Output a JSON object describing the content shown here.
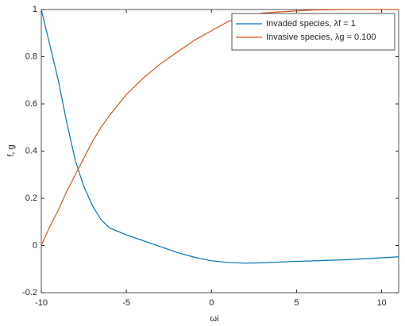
{
  "chart_data": {
    "type": "line",
    "xlabel": "ωi",
    "ylabel": "f, g",
    "x": [
      -10,
      -9.5,
      -9,
      -8.5,
      -8,
      -7.5,
      -7,
      -6.5,
      -6,
      -5,
      -4,
      -3,
      -2,
      -1,
      0,
      1,
      2,
      3,
      4,
      6,
      8,
      10,
      11
    ],
    "series": [
      {
        "name": "Invaded species, λf = 1",
        "color": "#0072bd",
        "values": [
          1,
          0.85,
          0.7,
          0.52,
          0.36,
          0.25,
          0.17,
          0.11,
          0.075,
          0.045,
          0.02,
          -0.005,
          -0.03,
          -0.05,
          -0.065,
          -0.072,
          -0.075,
          -0.073,
          -0.07,
          -0.065,
          -0.06,
          -0.052,
          -0.048
        ]
      },
      {
        "name": "Invasive species, λg = 0.100",
        "color": "#d95319",
        "values": [
          0,
          0.08,
          0.15,
          0.23,
          0.3,
          0.37,
          0.44,
          0.5,
          0.55,
          0.64,
          0.71,
          0.77,
          0.82,
          0.87,
          0.91,
          0.95,
          0.97,
          0.985,
          0.99,
          0.998,
          1,
          1,
          1
        ]
      }
    ],
    "xlim": [
      -10,
      11
    ],
    "xticks": [
      -10,
      -5,
      0,
      5,
      10
    ],
    "ylim": [
      -0.2,
      1
    ],
    "yticks": [
      -0.2,
      0,
      0.2,
      0.4,
      0.6,
      0.8,
      1
    ],
    "grid": false,
    "legend": "upper right"
  }
}
